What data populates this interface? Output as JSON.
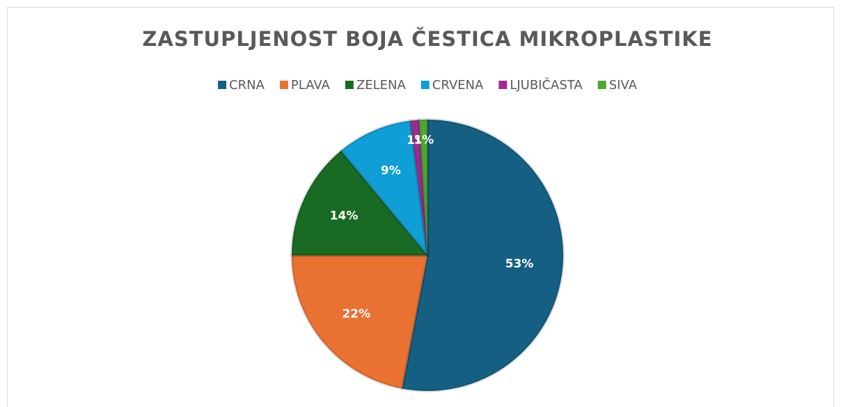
{
  "chart_data": {
    "type": "pie",
    "title": "ZASTUPLJENOST BOJA ČESTICA MIKROPLASTIKE",
    "categories": [
      "CRNA",
      "PLAVA",
      "ZELENA",
      "CRVENA",
      "LJUBIČASTA",
      "SIVA"
    ],
    "values": [
      53,
      22,
      14,
      9,
      1,
      1
    ],
    "value_labels": [
      "53%",
      "22%",
      "14%",
      "9%",
      "1%",
      "1%"
    ],
    "colors": [
      "#156082",
      "#e97132",
      "#196b24",
      "#0f9ed5",
      "#a02b93",
      "#4ea72e"
    ],
    "legend": "top"
  }
}
